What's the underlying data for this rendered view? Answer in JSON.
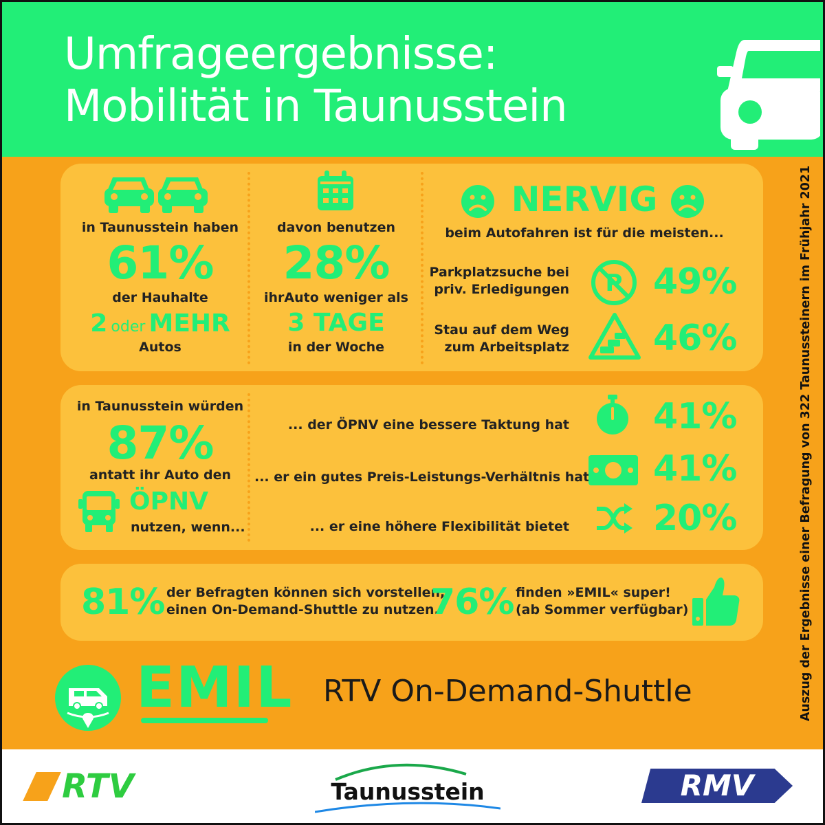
{
  "header": {
    "title_line1": "Umfrageergebnisse:",
    "title_line2": "Mobilität in Taunusstein",
    "icon": "car-front-icon"
  },
  "side_note": "Auszug der Ergebnisse einer Befragung von 322 Taunussteinern im Frühjahr 2021",
  "households": {
    "intro": "in Taunusstein haben",
    "percent": "61%",
    "label": "der Hauhalte",
    "amount_a": "2",
    "amount_or": "oder",
    "amount_b": "MEHR",
    "unit": "Autos",
    "icon": "two-cars-icon"
  },
  "usage": {
    "intro": "davon benutzen",
    "percent": "28%",
    "label": "ihrAuto weniger als",
    "days": "3 TAGE",
    "unit": "in der Woche",
    "icon": "calendar-icon"
  },
  "annoying": {
    "title": "NERVIG",
    "subtitle": "beim Autofahren ist für die meisten...",
    "items": [
      {
        "label_line1": "Parkplatzsuche bei",
        "label_line2": "priv. Erledigungen",
        "percent": "49%",
        "icon": "no-parking-icon"
      },
      {
        "label_line1": "Stau auf dem Weg",
        "label_line2": "zum Arbeitsplatz",
        "percent": "46%",
        "icon": "traffic-jam-icon"
      }
    ]
  },
  "transit": {
    "intro": "in Taunusstein würden",
    "percent": "87%",
    "label": "antatt ihr Auto den",
    "mode": "ÖPNV",
    "cond": "nutzen, wenn...",
    "icon": "bus-icon",
    "reasons": [
      {
        "label": "... der ÖPNV eine bessere Taktung hat",
        "percent": "41%",
        "icon": "stopwatch-icon"
      },
      {
        "label": "... er ein gutes Preis-Leistungs-Verhältnis hat",
        "percent": "41%",
        "icon": "money-icon"
      },
      {
        "label": "... er eine höhere Flexibilität bietet",
        "percent": "20%",
        "icon": "shuffle-icon"
      }
    ]
  },
  "shuttle": {
    "percent_a": "81%",
    "text_a_line1": "der Befragten können sich vorstellen,",
    "text_a_line2": "einen On-Demand-Shuttle zu nutzen.",
    "percent_b": "76%",
    "text_b_line1": "finden »EMIL« super!",
    "text_b_line2": "(ab Sommer verfügbar)",
    "icon": "thumbs-up-icon"
  },
  "brand": {
    "emil_logo_text": "EMIL",
    "tagline": "RTV On-Demand-Shuttle",
    "icon": "van-location-icon"
  },
  "logos": {
    "rtv": "RTV",
    "town": "Taunusstein",
    "rmv": "RMV"
  },
  "colors": {
    "green": "#22ee77",
    "orange": "#f7a21a",
    "panel": "#fcc13c"
  }
}
